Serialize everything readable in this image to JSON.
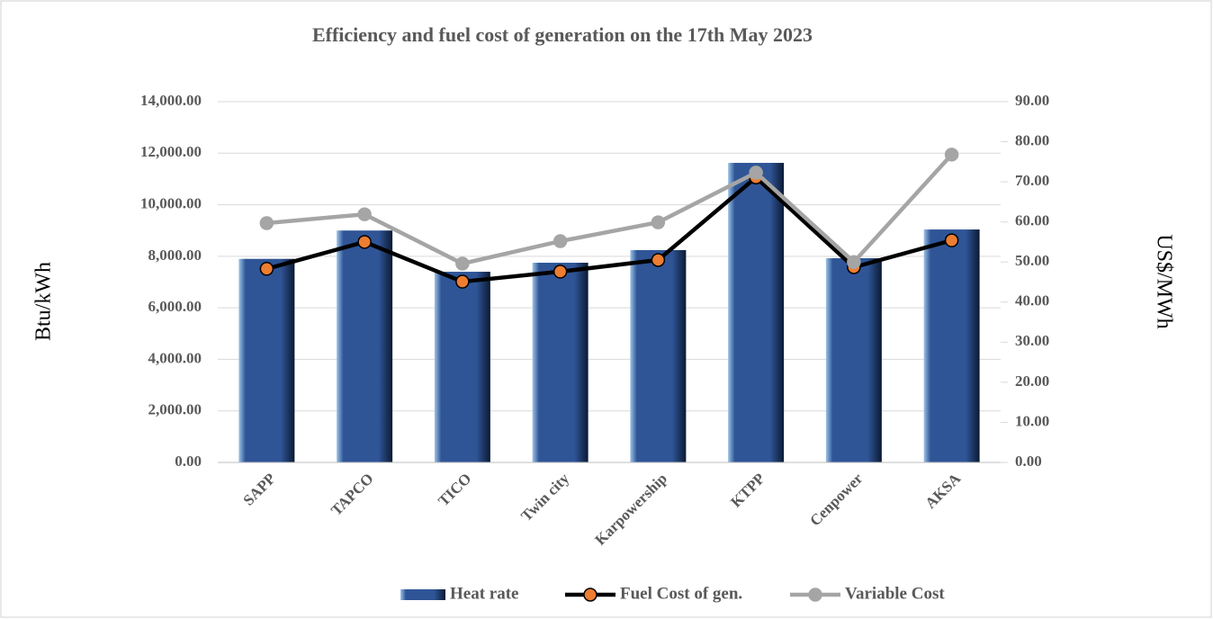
{
  "chart_data": {
    "type": "bar",
    "title": "Efficiency and fuel cost of generation on the 17th May 2023",
    "y_label": "Btu/kWh",
    "y2_label": "US$/MWh",
    "categories": [
      "SAPP",
      "TAPCO",
      "TICO",
      "Twin city",
      "Karpowership",
      "KTPP",
      "Cenpower",
      "AKSA"
    ],
    "series": [
      {
        "name": "Heat rate",
        "type": "bar",
        "color": "#2f5597",
        "values": [
          7900,
          9000,
          7400,
          7750,
          8240,
          11625,
          7925,
          9040
        ]
      },
      {
        "name": "Fuel Cost of gen.",
        "type": "line",
        "axis": "y2",
        "color": "#000000",
        "marker_color": "#ed7d31",
        "values": [
          48.3,
          55.0,
          45.1,
          47.6,
          50.5,
          71.1,
          48.7,
          55.4
        ]
      },
      {
        "name": "Variable Cost",
        "type": "line",
        "axis": "y2",
        "color": "#a5a5a5",
        "marker_color": "#a5a5a5",
        "values": [
          59.7,
          61.9,
          49.6,
          55.2,
          59.9,
          72.3,
          50.0,
          76.8
        ]
      }
    ],
    "ylim": [
      0,
      14000
    ],
    "yticks": [
      {
        "value": 0,
        "label": "0.00"
      },
      {
        "value": 2000,
        "label": "2,000.00"
      },
      {
        "value": 4000,
        "label": "4,000.00"
      },
      {
        "value": 6000,
        "label": "6,000.00"
      },
      {
        "value": 8000,
        "label": "8,000.00"
      },
      {
        "value": 10000,
        "label": "10,000.00"
      },
      {
        "value": 12000,
        "label": "12,000.00"
      },
      {
        "value": 14000,
        "label": "14,000.00"
      }
    ],
    "y2lim": [
      0,
      90
    ],
    "y2ticks": [
      {
        "value": 0,
        "label": "0.00"
      },
      {
        "value": 10,
        "label": "10.00"
      },
      {
        "value": 20,
        "label": "20.00"
      },
      {
        "value": 30,
        "label": "30.00"
      },
      {
        "value": 40,
        "label": "40.00"
      },
      {
        "value": 50,
        "label": "50.00"
      },
      {
        "value": 60,
        "label": "60.00"
      },
      {
        "value": 70,
        "label": "70.00"
      },
      {
        "value": 80,
        "label": "80.00"
      },
      {
        "value": 90,
        "label": "90.00"
      }
    ],
    "grid": true,
    "legend": "bottom"
  }
}
